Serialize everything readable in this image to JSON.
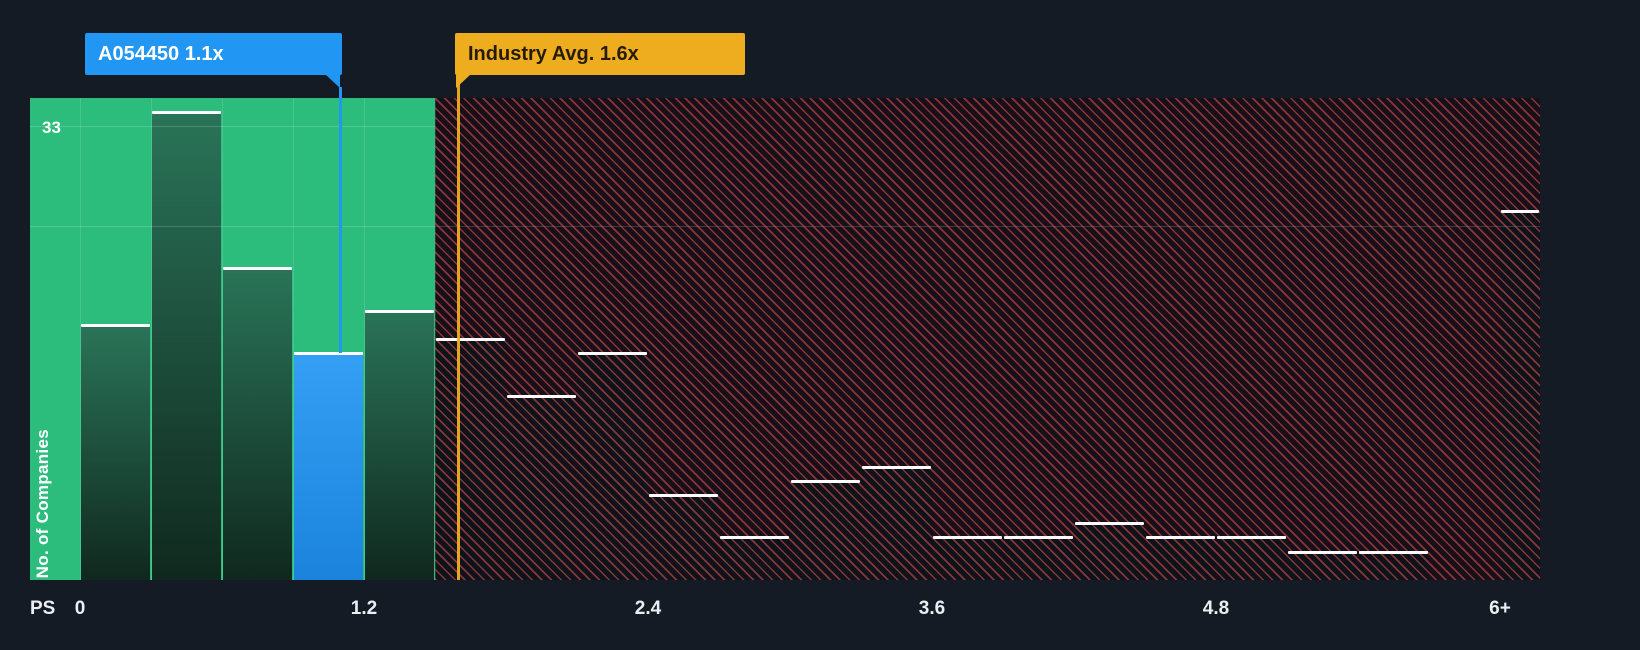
{
  "colors": {
    "background": "#141b24",
    "green_zone": "#2cbd7d",
    "blue": "#2196f3",
    "yellow": "#eead1e",
    "red_stripe": "#ff5a50",
    "red_zone_bg": "#17101a",
    "red_bar": "#0e131b",
    "bar_top_line": "#ffffff",
    "axis_text": "#eceff1"
  },
  "company_callout": {
    "label": "A054450 1.1x",
    "value": 1.1
  },
  "industry_callout": {
    "label": "Industry Avg. 1.6x",
    "value": 1.6
  },
  "y_axis": {
    "label": "No. of Companies",
    "max_count_label": "33"
  },
  "x_axis": {
    "unit_label": "PS",
    "ticks": [
      {
        "value": 0,
        "label": "0"
      },
      {
        "value": 1.2,
        "label": "1.2"
      },
      {
        "value": 2.4,
        "label": "2.4"
      },
      {
        "value": 3.6,
        "label": "3.6"
      },
      {
        "value": 4.8,
        "label": "4.8"
      },
      {
        "value": 6,
        "label": "6+"
      }
    ]
  },
  "chart_data": {
    "type": "bar",
    "xlabel": "PS",
    "ylabel": "No. of Companies",
    "xlim": [
      0,
      6.2
    ],
    "ylim": [
      0,
      34
    ],
    "company_value": 1.1,
    "industry_avg": 1.6,
    "green_zone_range": [
      0,
      1.5
    ],
    "hatched_zone_range": [
      1.5,
      6.2
    ],
    "gridlines": [
      {
        "value": 32,
        "span": "green"
      },
      {
        "value": 25,
        "span": "full"
      }
    ],
    "bars": [
      {
        "from": 0.0,
        "to": 0.3,
        "count": 18,
        "kind": "green"
      },
      {
        "from": 0.3,
        "to": 0.6,
        "count": 33,
        "kind": "green"
      },
      {
        "from": 0.6,
        "to": 0.9,
        "count": 22,
        "kind": "green"
      },
      {
        "from": 0.9,
        "to": 1.2,
        "count": 16,
        "kind": "company"
      },
      {
        "from": 1.2,
        "to": 1.5,
        "count": 19,
        "kind": "green"
      },
      {
        "from": 1.5,
        "to": 1.8,
        "count": 17,
        "kind": "red"
      },
      {
        "from": 1.8,
        "to": 2.1,
        "count": 13,
        "kind": "red"
      },
      {
        "from": 2.1,
        "to": 2.4,
        "count": 16,
        "kind": "red"
      },
      {
        "from": 2.4,
        "to": 2.7,
        "count": 6,
        "kind": "red"
      },
      {
        "from": 2.7,
        "to": 3.0,
        "count": 3,
        "kind": "red"
      },
      {
        "from": 3.0,
        "to": 3.3,
        "count": 7,
        "kind": "red"
      },
      {
        "from": 3.3,
        "to": 3.6,
        "count": 8,
        "kind": "red"
      },
      {
        "from": 3.6,
        "to": 3.9,
        "count": 3,
        "kind": "red"
      },
      {
        "from": 3.9,
        "to": 4.2,
        "count": 3,
        "kind": "red"
      },
      {
        "from": 4.2,
        "to": 4.5,
        "count": 4,
        "kind": "red"
      },
      {
        "from": 4.5,
        "to": 4.8,
        "count": 3,
        "kind": "red"
      },
      {
        "from": 4.8,
        "to": 5.1,
        "count": 3,
        "kind": "red"
      },
      {
        "from": 5.1,
        "to": 5.4,
        "count": 2,
        "kind": "red"
      },
      {
        "from": 5.4,
        "to": 5.7,
        "count": 2,
        "kind": "red"
      },
      {
        "from": 5.7,
        "to": 6.0,
        "count": 0,
        "kind": "red"
      },
      {
        "from": 6.0,
        "to": 6.2,
        "count": 26,
        "kind": "red"
      }
    ]
  }
}
